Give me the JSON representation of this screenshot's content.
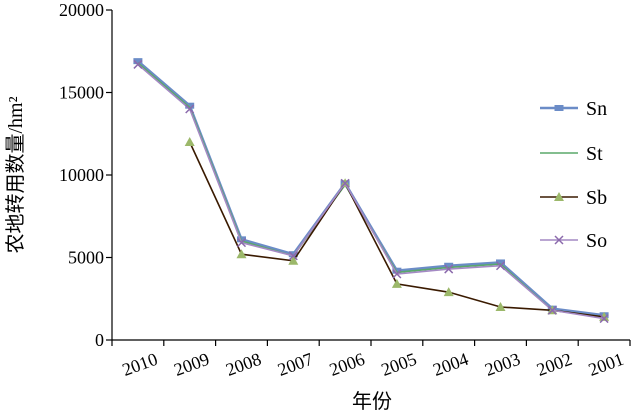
{
  "chart_data": {
    "type": "line",
    "categories": [
      "2010",
      "2009",
      "2008",
      "2007",
      "2006",
      "2005",
      "2004",
      "2003",
      "2002",
      "2001"
    ],
    "xlabel": "年份",
    "ylabel": "农地转用数量/hm²",
    "ylim": [
      0,
      20000
    ],
    "yticks": [
      "0",
      "5000",
      "10000",
      "15000",
      "20000"
    ],
    "grid": false,
    "legend_position": "right",
    "series": [
      {
        "name": "Sn",
        "color": "#6b8cc7",
        "marker": "square-icon",
        "values": [
          16900,
          14200,
          6100,
          5200,
          9500,
          4200,
          4500,
          4700,
          1900,
          1500
        ]
      },
      {
        "name": "St",
        "color": "#5aa86a",
        "marker": "none",
        "values": [
          16800,
          14100,
          6000,
          5100,
          9400,
          4100,
          4400,
          4600,
          1800,
          1400
        ]
      },
      {
        "name": "Sb",
        "color": "#3a1a00",
        "marker": "triangle-icon",
        "markerColor": "#9cb86a",
        "values": [
          null,
          12000,
          5200,
          4800,
          9500,
          3400,
          2900,
          2000,
          1800,
          1400
        ]
      },
      {
        "name": "So",
        "color": "#a489c4",
        "marker": "x-icon",
        "markerColor": "#8b6aac",
        "values": [
          16700,
          14000,
          5900,
          5100,
          9500,
          4000,
          4300,
          4500,
          1800,
          1300
        ]
      }
    ]
  }
}
